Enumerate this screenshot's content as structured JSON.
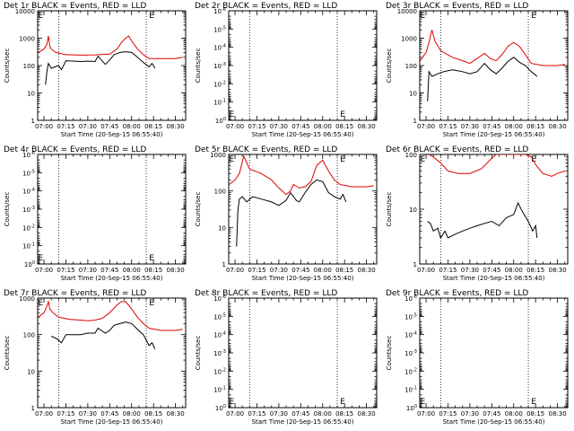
{
  "chart_data": [
    {
      "type": "line",
      "title": "Det 1r BLACK = Events, RED = LLD",
      "xlabel": "Start Time (20-Sep-15 06:55:40)",
      "ylabel": "Counts/sec",
      "log_y": true,
      "x_ticks": [
        "07:00",
        "07:15",
        "07:30",
        "07:45",
        "08:00",
        "08:15",
        "08:30"
      ],
      "y_ticks": [
        "1",
        "10",
        "100",
        "1000",
        "10000"
      ],
      "xlim": [
        "06:55:40",
        "08:37:00"
      ],
      "ylim": [
        1,
        10000
      ],
      "markers": [
        "07:10",
        "08:10"
      ],
      "e_marks": [
        "06:56",
        "08:12"
      ],
      "series": [
        {
          "name": "RED",
          "color": "#e00000",
          "x": [
            "06:56",
            "07:00",
            "07:02",
            "07:03",
            "07:04",
            "07:05",
            "07:08",
            "07:15",
            "07:25",
            "07:35",
            "07:45",
            "07:50",
            "07:53",
            "07:56",
            "07:58",
            "08:00",
            "08:04",
            "08:08",
            "08:12",
            "08:20",
            "08:30",
            "08:35"
          ],
          "y": [
            300,
            400,
            600,
            1200,
            500,
            400,
            300,
            250,
            240,
            245,
            260,
            400,
            700,
            1000,
            1200,
            800,
            400,
            250,
            180,
            180,
            180,
            200
          ]
        },
        {
          "name": "BLACK",
          "color": "#000000",
          "x": [
            "07:01",
            "07:02",
            "07:03",
            "07:05",
            "07:10",
            "07:12",
            "07:15",
            "07:25",
            "07:30",
            "07:35",
            "07:37",
            "07:42",
            "07:45",
            "07:48",
            "07:52",
            "07:56",
            "08:00",
            "08:04",
            "08:08",
            "08:12",
            "08:14",
            "08:16"
          ],
          "y": [
            20,
            60,
            120,
            80,
            100,
            70,
            150,
            140,
            145,
            140,
            220,
            110,
            160,
            250,
            300,
            320,
            300,
            200,
            130,
            90,
            120,
            80
          ]
        }
      ]
    },
    {
      "type": "line",
      "title": "Det 2r BLACK = Events, RED = LLD",
      "xlabel": "Start Time (20-Sep-15 06:55:40)",
      "ylabel": "Counts/sec",
      "log_y": true,
      "x_ticks": [
        "07:00",
        "07:15",
        "07:30",
        "07:45",
        "08:00",
        "08:15",
        "08:30"
      ],
      "y_ticks": [
        "10^0",
        "10^-1",
        "10^-2",
        "10^-3",
        "10^-4",
        "10^-5",
        "10^-6"
      ],
      "xlim": [
        "06:55:40",
        "08:37:00"
      ],
      "ylim": [
        1,
        1e-06
      ],
      "markers": [
        "07:10",
        "08:10"
      ],
      "e_marks": [
        "06:56",
        "08:12"
      ],
      "series": []
    },
    {
      "type": "line",
      "title": "Det 3r BLACK = Events, RED = LLD",
      "xlabel": "Start Time (20-Sep-15 06:55:40)",
      "ylabel": "Counts/sec",
      "log_y": true,
      "x_ticks": [
        "07:00",
        "07:15",
        "07:30",
        "07:45",
        "08:00",
        "08:15",
        "08:30"
      ],
      "y_ticks": [
        "1",
        "10",
        "100",
        "1000",
        "10000"
      ],
      "xlim": [
        "06:55:40",
        "08:37:00"
      ],
      "ylim": [
        1,
        10000
      ],
      "markers": [
        "07:10",
        "08:10"
      ],
      "e_marks": [
        "06:56",
        "08:12"
      ],
      "series": [
        {
          "name": "RED",
          "color": "#e00000",
          "x": [
            "06:56",
            "07:00",
            "07:02",
            "07:04",
            "07:06",
            "07:10",
            "07:18",
            "07:25",
            "07:30",
            "07:35",
            "07:40",
            "07:44",
            "07:48",
            "07:52",
            "07:56",
            "08:00",
            "08:04",
            "08:08",
            "08:12",
            "08:20",
            "08:30",
            "08:35"
          ],
          "y": [
            150,
            300,
            700,
            2000,
            800,
            350,
            200,
            150,
            120,
            180,
            280,
            180,
            150,
            250,
            500,
            700,
            500,
            250,
            120,
            100,
            100,
            110
          ]
        },
        {
          "name": "BLACK",
          "color": "#000000",
          "x": [
            "07:01",
            "07:02",
            "07:04",
            "07:08",
            "07:12",
            "07:18",
            "07:25",
            "07:30",
            "07:35",
            "07:40",
            "07:44",
            "07:48",
            "07:52",
            "07:56",
            "08:00",
            "08:04",
            "08:08",
            "08:12",
            "08:14",
            "08:16"
          ],
          "y": [
            5,
            60,
            40,
            50,
            60,
            70,
            60,
            50,
            60,
            120,
            70,
            50,
            80,
            140,
            200,
            130,
            100,
            60,
            50,
            40
          ]
        }
      ]
    },
    {
      "type": "line",
      "title": "Det 4r BLACK = Events, RED = LLD",
      "xlabel": "Start Time (20-Sep-15 06:55:40)",
      "ylabel": "Counts/sec",
      "log_y": true,
      "x_ticks": [
        "07:00",
        "07:15",
        "07:30",
        "07:45",
        "08:00",
        "08:15",
        "08:30"
      ],
      "y_ticks": [
        "10^0",
        "10^-1",
        "10^-2",
        "10^-3",
        "10^-4",
        "10^-5",
        "10^-6"
      ],
      "xlim": [
        "06:55:40",
        "08:37:00"
      ],
      "ylim": [
        1,
        1e-06
      ],
      "markers": [
        "07:10",
        "08:10"
      ],
      "e_marks": [
        "06:56",
        "08:12"
      ],
      "series": []
    },
    {
      "type": "line",
      "title": "Det 5r BLACK = Events, RED = LLD",
      "xlabel": "Start Time (20-Sep-15 06:55:40)",
      "ylabel": "Counts/sec",
      "log_y": true,
      "x_ticks": [
        "07:00",
        "07:15",
        "07:30",
        "07:45",
        "08:00",
        "08:15",
        "08:30"
      ],
      "y_ticks": [
        "1",
        "10",
        "100",
        "1000"
      ],
      "xlim": [
        "06:55:40",
        "08:37:00"
      ],
      "ylim": [
        1,
        1000
      ],
      "markers": [
        "07:10",
        "08:10"
      ],
      "e_marks": [
        "06:56",
        "08:12"
      ],
      "series": [
        {
          "name": "RED",
          "color": "#e00000",
          "x": [
            "06:56",
            "07:00",
            "07:03",
            "07:06",
            "07:10",
            "07:18",
            "07:25",
            "07:30",
            "07:35",
            "07:38",
            "07:40",
            "07:44",
            "07:48",
            "07:52",
            "07:56",
            "08:00",
            "08:04",
            "08:08",
            "08:12",
            "08:20",
            "08:30",
            "08:35"
          ],
          "y": [
            150,
            200,
            300,
            900,
            400,
            300,
            200,
            120,
            80,
            100,
            150,
            120,
            130,
            180,
            500,
            700,
            350,
            200,
            150,
            130,
            130,
            140
          ]
        },
        {
          "name": "BLACK",
          "color": "#000000",
          "x": [
            "07:01",
            "07:02",
            "07:03",
            "07:05",
            "07:08",
            "07:12",
            "07:18",
            "07:25",
            "07:30",
            "07:35",
            "07:38",
            "07:42",
            "07:44",
            "07:48",
            "07:52",
            "07:56",
            "08:00",
            "08:04",
            "08:08",
            "08:12",
            "08:14",
            "08:16"
          ],
          "y": [
            3,
            30,
            60,
            70,
            50,
            70,
            60,
            50,
            40,
            55,
            90,
            55,
            50,
            90,
            150,
            200,
            180,
            90,
            70,
            60,
            80,
            50
          ]
        }
      ]
    },
    {
      "type": "line",
      "title": "Det 6r BLACK = Events, RED = LLD",
      "xlabel": "Start Time (20-Sep-15 06:55:40)",
      "ylabel": "Counts/sec",
      "log_y": true,
      "x_ticks": [
        "07:00",
        "07:15",
        "07:30",
        "07:45",
        "08:00",
        "08:15",
        "08:30"
      ],
      "y_ticks": [
        "1",
        "10",
        "100"
      ],
      "xlim": [
        "06:55:40",
        "08:37:00"
      ],
      "ylim": [
        1,
        100
      ],
      "markers": [
        "07:10",
        "08:10"
      ],
      "e_marks": [
        "06:56",
        "08:12"
      ],
      "series": [
        {
          "name": "RED",
          "color": "#e00000",
          "x": [
            "07:02",
            "07:05",
            "07:10",
            "07:15",
            "07:22",
            "07:30",
            "07:38",
            "07:44",
            "07:48",
            "07:52",
            "07:56",
            "08:00",
            "08:04",
            "08:08",
            "08:12",
            "08:16",
            "08:20",
            "08:26",
            "08:30",
            "08:35"
          ],
          "y": [
            100,
            90,
            70,
            50,
            45,
            45,
            55,
            80,
            100,
            100,
            100,
            100,
            100,
            100,
            90,
            60,
            45,
            40,
            45,
            50
          ]
        },
        {
          "name": "BLACK",
          "color": "#000000",
          "x": [
            "07:01",
            "07:03",
            "07:05",
            "07:08",
            "07:10",
            "07:13",
            "07:15",
            "07:20",
            "07:25",
            "07:30",
            "07:35",
            "07:40",
            "07:45",
            "07:50",
            "07:55",
            "08:00",
            "08:03",
            "08:06",
            "08:10",
            "08:13",
            "08:15",
            "08:16"
          ],
          "y": [
            6,
            5.5,
            4,
            4.5,
            3,
            4,
            3,
            3.5,
            4,
            4.5,
            5,
            5.5,
            6,
            5,
            7,
            8,
            13,
            9,
            6,
            4,
            5,
            3
          ]
        }
      ]
    },
    {
      "type": "line",
      "title": "Det 7r BLACK = Events, RED = LLD",
      "xlabel": "Start Time (20-Sep-15 06:55:40)",
      "ylabel": "Counts/sec",
      "log_y": true,
      "x_ticks": [
        "07:00",
        "07:15",
        "07:30",
        "07:45",
        "08:00",
        "08:15",
        "08:30"
      ],
      "y_ticks": [
        "1",
        "10",
        "100",
        "1000"
      ],
      "xlim": [
        "06:55:40",
        "08:37:00"
      ],
      "ylim": [
        1,
        1000
      ],
      "markers": [
        "07:10",
        "08:10"
      ],
      "e_marks": [
        "06:56",
        "08:12"
      ],
      "series": [
        {
          "name": "RED",
          "color": "#e00000",
          "x": [
            "06:56",
            "07:00",
            "07:02",
            "07:03",
            "07:04",
            "07:06",
            "07:10",
            "07:18",
            "07:25",
            "07:30",
            "07:35",
            "07:40",
            "07:45",
            "07:50",
            "07:53",
            "07:56",
            "08:00",
            "08:04",
            "08:08",
            "08:12",
            "08:20",
            "08:30",
            "08:35"
          ],
          "y": [
            300,
            400,
            600,
            800,
            500,
            400,
            300,
            260,
            250,
            240,
            250,
            280,
            400,
            650,
            800,
            800,
            500,
            300,
            200,
            150,
            130,
            130,
            140
          ]
        },
        {
          "name": "BLACK",
          "color": "#000000",
          "x": [
            "07:05",
            "07:08",
            "07:12",
            "07:15",
            "07:25",
            "07:30",
            "07:35",
            "07:37",
            "07:42",
            "07:45",
            "07:48",
            "07:52",
            "07:56",
            "08:00",
            "08:04",
            "08:08",
            "08:12",
            "08:14",
            "08:16"
          ],
          "y": [
            90,
            80,
            60,
            100,
            100,
            110,
            110,
            150,
            110,
            130,
            180,
            200,
            220,
            200,
            140,
            100,
            50,
            60,
            40
          ]
        }
      ]
    },
    {
      "type": "line",
      "title": "Det 8r BLACK = Events, RED = LLD",
      "xlabel": "Start Time (20-Sep-15 06:55:40)",
      "ylabel": "Counts/sec",
      "log_y": true,
      "x_ticks": [
        "07:00",
        "07:15",
        "07:30",
        "07:45",
        "08:00",
        "08:15",
        "08:30"
      ],
      "y_ticks": [
        "10^0",
        "10^-1",
        "10^-2",
        "10^-3",
        "10^-4",
        "10^-5",
        "10^-6"
      ],
      "xlim": [
        "06:55:40",
        "08:37:00"
      ],
      "ylim": [
        1,
        1e-06
      ],
      "markers": [
        "07:10",
        "08:10"
      ],
      "e_marks": [
        "06:56",
        "08:12"
      ],
      "series": []
    },
    {
      "type": "line",
      "title": "Det 9r BLACK = Events, RED = LLD",
      "xlabel": "Start Time (20-Sep-15 06:55:40)",
      "ylabel": "Counts/sec",
      "log_y": true,
      "x_ticks": [
        "07:00",
        "07:15",
        "07:30",
        "07:45",
        "08:00",
        "08:15",
        "08:30"
      ],
      "y_ticks": [
        "10^0",
        "10^-1",
        "10^-2",
        "10^-3",
        "10^-4",
        "10^-5",
        "10^-6"
      ],
      "xlim": [
        "06:55:40",
        "08:37:00"
      ],
      "ylim": [
        1,
        1e-06
      ],
      "markers": [
        "07:10",
        "08:10"
      ],
      "e_marks": [
        "06:56",
        "08:12"
      ],
      "series": []
    }
  ]
}
